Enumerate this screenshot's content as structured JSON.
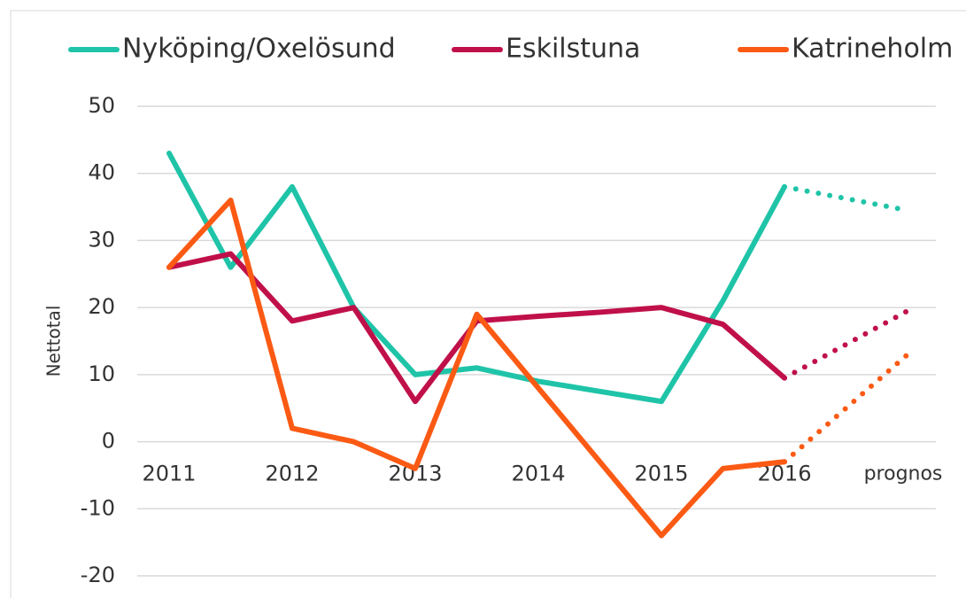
{
  "chart_data": {
    "type": "line",
    "ylabel": "Nettotal",
    "categories": [
      "2011",
      null,
      "2012",
      null,
      "2013",
      null,
      "2014",
      null,
      "2015",
      null,
      "2016",
      null,
      "prognos"
    ],
    "series": [
      {
        "name": "Nyköping/Oxelösund",
        "color": "#1fc4a8",
        "values": [
          43,
          26,
          38,
          20,
          10,
          11,
          9,
          7.5,
          6,
          21,
          38,
          null,
          34.5
        ]
      },
      {
        "name": "Eskilstuna",
        "color": "#c0104a",
        "values": [
          26,
          28,
          18,
          20,
          6,
          18,
          18.7,
          19.3,
          20,
          17.5,
          9.5,
          null,
          19.5
        ]
      },
      {
        "name": "Katrineholm",
        "color": "#fb5a14",
        "values": [
          26,
          36,
          2,
          0,
          -4,
          19,
          8,
          -3,
          -14,
          -4,
          -3,
          null,
          13
        ]
      }
    ],
    "forecast_from": 10,
    "ylim": [
      -20,
      50
    ],
    "yticks": [
      -20,
      -10,
      0,
      10,
      20,
      30,
      40,
      50
    ],
    "grid": true,
    "legend": "top"
  }
}
